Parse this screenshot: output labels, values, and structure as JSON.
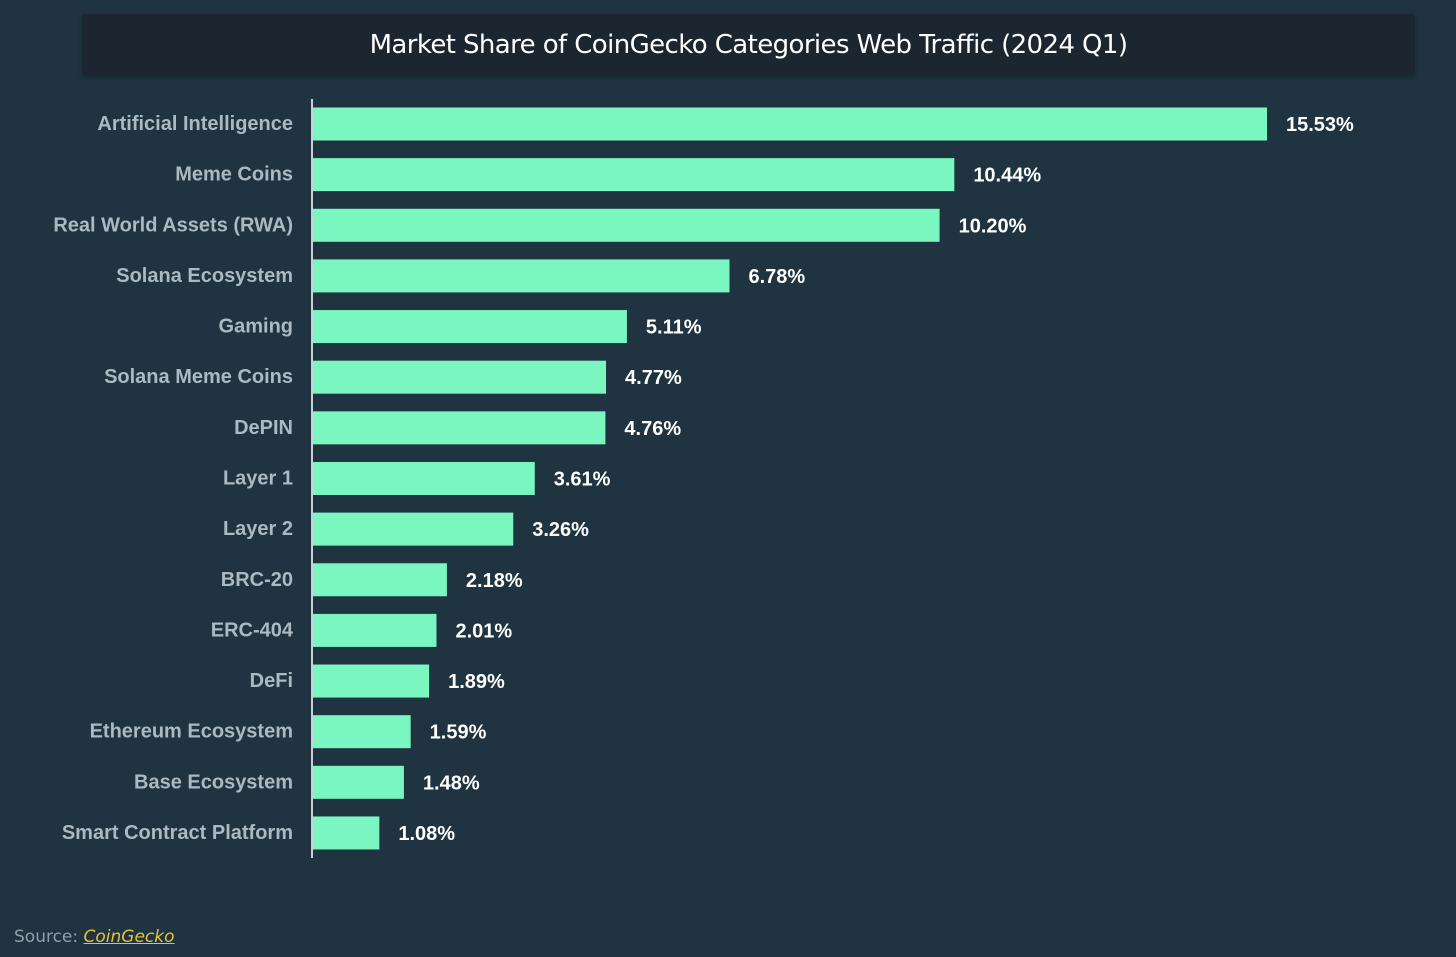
{
  "chart_data": {
    "type": "bar",
    "orientation": "horizontal",
    "title": "Market Share of CoinGecko Categories Web Traffic (2024 Q1)",
    "categories": [
      "Artificial Intelligence",
      "Meme Coins",
      "Real World Assets (RWA)",
      "Solana Ecosystem",
      "Gaming",
      "Solana Meme Coins",
      "DePIN",
      "Layer 1",
      "Layer 2",
      "BRC-20",
      "ERC-404",
      "DeFi",
      "Ethereum Ecosystem",
      "Base Ecosystem",
      "Smart Contract Platform"
    ],
    "values": [
      15.53,
      10.44,
      10.2,
      6.78,
      5.11,
      4.77,
      4.76,
      3.61,
      3.26,
      2.18,
      2.01,
      1.89,
      1.59,
      1.48,
      1.08
    ],
    "value_labels": [
      "15.53%",
      "10.44%",
      "10.20%",
      "6.78%",
      "5.11%",
      "4.77%",
      "4.76%",
      "3.61%",
      "3.26%",
      "2.18%",
      "2.01%",
      "1.89%",
      "1.59%",
      "1.48%",
      "1.08%"
    ],
    "xlabel": "",
    "ylabel": "",
    "unit": "%",
    "grid": false,
    "legend": "none",
    "colors": {
      "bar": "#7af7c0",
      "background": "#1f3440",
      "title_bar": "#1c2630",
      "category_text": "#aab9c2",
      "value_text": "#ffffff"
    }
  },
  "source": {
    "label": "Source:",
    "link_text": "CoinGecko",
    "link_color": "#e8c13a"
  }
}
